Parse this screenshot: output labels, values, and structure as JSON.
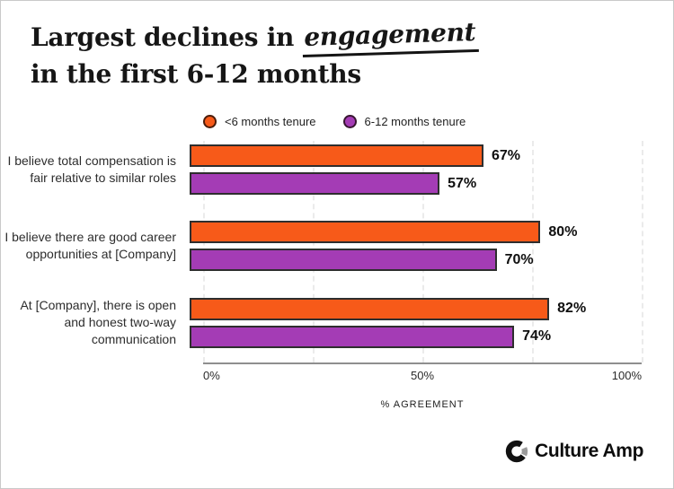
{
  "title": {
    "prefix": "Largest declines in",
    "highlight": "engagement",
    "line2": "in the first 6-12 months"
  },
  "legend": {
    "items": [
      {
        "label": "<6 months tenure",
        "color": "#F75A19"
      },
      {
        "label": "6-12 months tenure",
        "color": "#A43CB5"
      }
    ]
  },
  "chart_data": {
    "type": "bar",
    "orientation": "horizontal",
    "title": "Largest declines in engagement in the first 6-12 months",
    "categories": [
      "I believe total compensation is fair relative to similar roles",
      "I believe there are good career opportunities at [Company]",
      "At [Company], there is open and honest two-way communication"
    ],
    "series": [
      {
        "name": "<6 months tenure",
        "color": "#F75A19",
        "values": [
          67,
          80,
          82
        ],
        "value_labels": [
          "67%",
          "80%",
          "82%"
        ]
      },
      {
        "name": "6-12 months tenure",
        "color": "#A43CB5",
        "values": [
          57,
          70,
          74
        ],
        "value_labels": [
          "57%",
          "70%",
          "74%"
        ]
      }
    ],
    "xlabel": "% AGREEMENT",
    "x_ticks": [
      "0%",
      "50%",
      "100%"
    ],
    "xlim": [
      0,
      100
    ],
    "legend_position": "top",
    "grid": "vertical-dashed",
    "bar_outline_color": "#2e2e2e"
  },
  "footer": {
    "brand": "Culture Amp"
  }
}
